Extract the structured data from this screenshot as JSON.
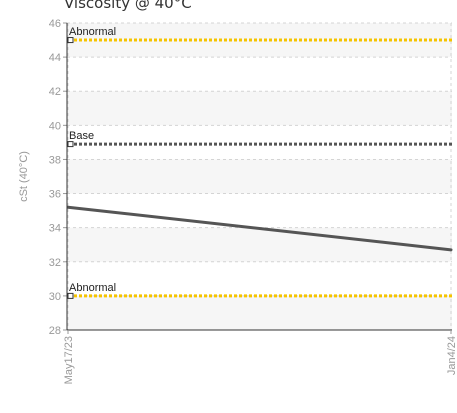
{
  "chart_data": {
    "type": "line",
    "title": "Viscosity @ 40°C",
    "ylabel": "cSt (40°C)",
    "xlabel": "",
    "ylim": [
      28,
      46
    ],
    "yticks": [
      28,
      30,
      32,
      34,
      36,
      38,
      40,
      42,
      44,
      46
    ],
    "categories": [
      "May17/23",
      "Jan4/24"
    ],
    "grid": true,
    "series": [
      {
        "values": [
          35.2,
          32.7
        ],
        "color": "#555555"
      }
    ],
    "reference_lines": [
      {
        "label": "Abnormal",
        "value": 45,
        "color": "#f5c400",
        "style": "dotted"
      },
      {
        "label": "Base",
        "value": 38.9,
        "color": "#555555",
        "style": "dotted"
      },
      {
        "label": "Abnormal",
        "value": 30,
        "color": "#f5c400",
        "style": "dotted"
      }
    ]
  }
}
